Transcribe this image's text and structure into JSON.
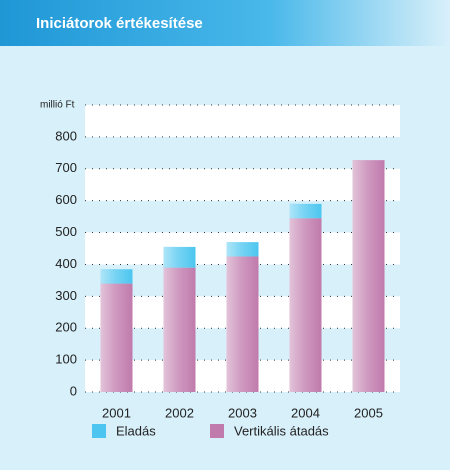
{
  "chart_data": {
    "type": "stacked_bar",
    "title": "Iniciátorok értékesítése",
    "y_label": "millió Ft",
    "categories": [
      "2001",
      "2002",
      "2003",
      "2004",
      "2005"
    ],
    "series": [
      {
        "name": "Eladás",
        "color": "#4cc6f0",
        "values": [
          45,
          65,
          45,
          45,
          0
        ]
      },
      {
        "name": "Vertikális átadás",
        "color": "#c07aac",
        "values": [
          340,
          390,
          425,
          545,
          727
        ]
      }
    ],
    "ylim": [
      0,
      900
    ],
    "yticks": [
      0,
      100,
      200,
      300,
      400,
      500,
      600,
      700,
      800
    ],
    "grid": true
  }
}
